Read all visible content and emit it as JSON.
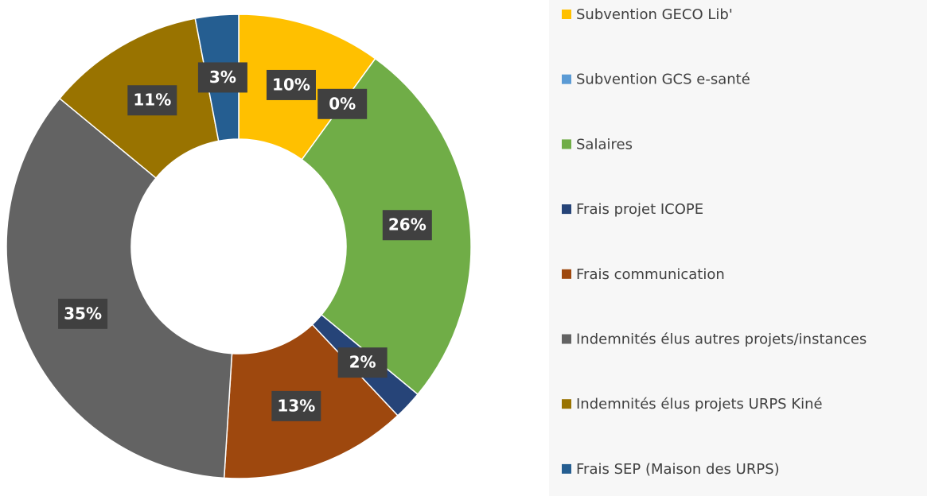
{
  "chart_data": {
    "type": "donut",
    "categories": [
      "Subvention GECO Lib'",
      "Subvention GCS e-santé",
      "Salaires",
      "Frais projet ICOPE",
      "Frais communication",
      "Indemnités élus autres projets/instances",
      "Indemnités élus projets URPS Kiné",
      "Frais SEP (Maison des URPS)"
    ],
    "values": [
      10,
      0,
      26,
      2,
      13,
      35,
      11,
      3
    ],
    "value_labels": [
      "10%",
      "0%",
      "26%",
      "2%",
      "13%",
      "35%",
      "11%",
      "3%"
    ],
    "colors": [
      "#FFC000",
      "#5B9BD5",
      "#70AD47",
      "#264478",
      "#9E480E",
      "#636363",
      "#997300",
      "#255E91"
    ],
    "legend": "right"
  }
}
